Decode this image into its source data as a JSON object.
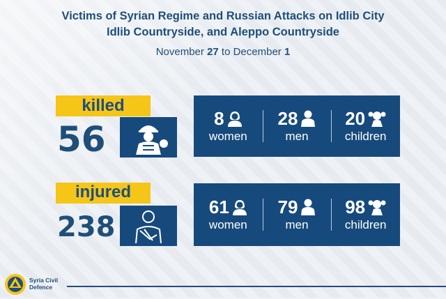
{
  "header": {
    "title_line1": "Victims of Syrian Regime and Russian Attacks on Idlib City",
    "title_line2": "Idlib Countryside, and Aleppo Countryside",
    "date_prefix": "November",
    "date_start": "27",
    "date_mid": "to December",
    "date_end": "1"
  },
  "killed": {
    "label": "killed",
    "total": "56",
    "women": "8",
    "women_label": "women",
    "men": "28",
    "men_label": "men",
    "children": "20",
    "children_label": "children"
  },
  "injured": {
    "label": "injured",
    "total": "238",
    "women": "61",
    "women_label": "women",
    "men": "79",
    "men_label": "men",
    "children": "98",
    "children_label": "children"
  },
  "footer": {
    "org_line1": "Syria Civil",
    "org_line2": "Defence"
  },
  "colors": {
    "navy": "#174a7c",
    "yellow": "#f5c518",
    "text": "#1f4e79"
  }
}
